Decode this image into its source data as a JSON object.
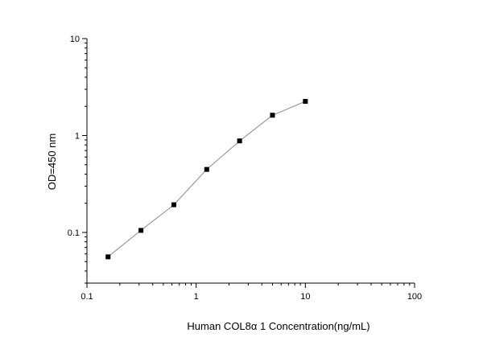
{
  "chart_data": {
    "type": "scatter",
    "title": "",
    "xlabel": "Human COL8α 1  Concentration(ng/mL)",
    "ylabel": "OD=450 nm",
    "xscale": "log",
    "yscale": "log",
    "xlim": [
      0.1,
      100
    ],
    "ylim": [
      0.03,
      10
    ],
    "x_ticks": [
      0.1,
      1,
      10,
      100
    ],
    "x_tick_labels": [
      "0.1",
      "1",
      "10",
      "100"
    ],
    "y_ticks": [
      0.1,
      1,
      10
    ],
    "y_tick_labels": [
      "0.1",
      "1",
      "10"
    ],
    "grid": false,
    "legend": "none",
    "series": [
      {
        "x": [
          0.156,
          0.3125,
          0.625,
          1.25,
          2.5,
          5,
          10
        ],
        "y": [
          0.056,
          0.105,
          0.193,
          0.447,
          0.88,
          1.62,
          2.25
        ],
        "color": "#000000",
        "line_color": "#8a8a8a",
        "marker": "square"
      }
    ]
  }
}
